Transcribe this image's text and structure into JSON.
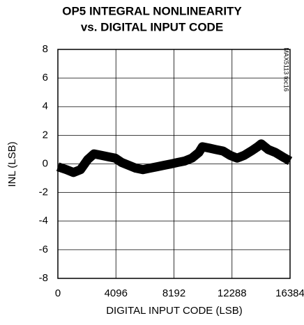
{
  "chart_data": {
    "type": "line",
    "title": "OP5 INTEGRAL NONLINEARITY",
    "subtitle": "vs. DIGITAL INPUT CODE",
    "xlabel": "DIGITAL INPUT CODE (LSB)",
    "ylabel": "INL (LSB)",
    "annotation": "MAX5113 toc16",
    "x": [
      0,
      600,
      1100,
      1600,
      2100,
      2550,
      3050,
      3550,
      4050,
      4500,
      5000,
      5500,
      6000,
      6500,
      7000,
      7500,
      8000,
      8450,
      8950,
      9450,
      9950,
      10200,
      10700,
      11150,
      11650,
      12150,
      12650,
      13150,
      13650,
      14100,
      14350,
      14850,
      15350,
      15850,
      16384
    ],
    "series": [
      {
        "name": "INL",
        "color": "#000000",
        "values": [
          -0.2,
          -0.4,
          -0.6,
          -0.4,
          0.3,
          0.7,
          0.6,
          0.5,
          0.4,
          0.1,
          -0.1,
          -0.3,
          -0.4,
          -0.3,
          -0.2,
          -0.1,
          0,
          0.1,
          0.2,
          0.4,
          0.8,
          1.2,
          1.1,
          1.0,
          0.9,
          0.6,
          0.4,
          0.6,
          0.9,
          1.2,
          1.4,
          1.0,
          0.8,
          0.5,
          0.2
        ]
      }
    ],
    "xlim": [
      0,
      16384
    ],
    "xticks": [
      0,
      4096,
      8192,
      12288,
      16384
    ],
    "ylim": [
      -8,
      8
    ],
    "yticks": [
      -8,
      -6,
      -4,
      -2,
      0,
      2,
      4,
      6,
      8
    ],
    "grid": true
  }
}
